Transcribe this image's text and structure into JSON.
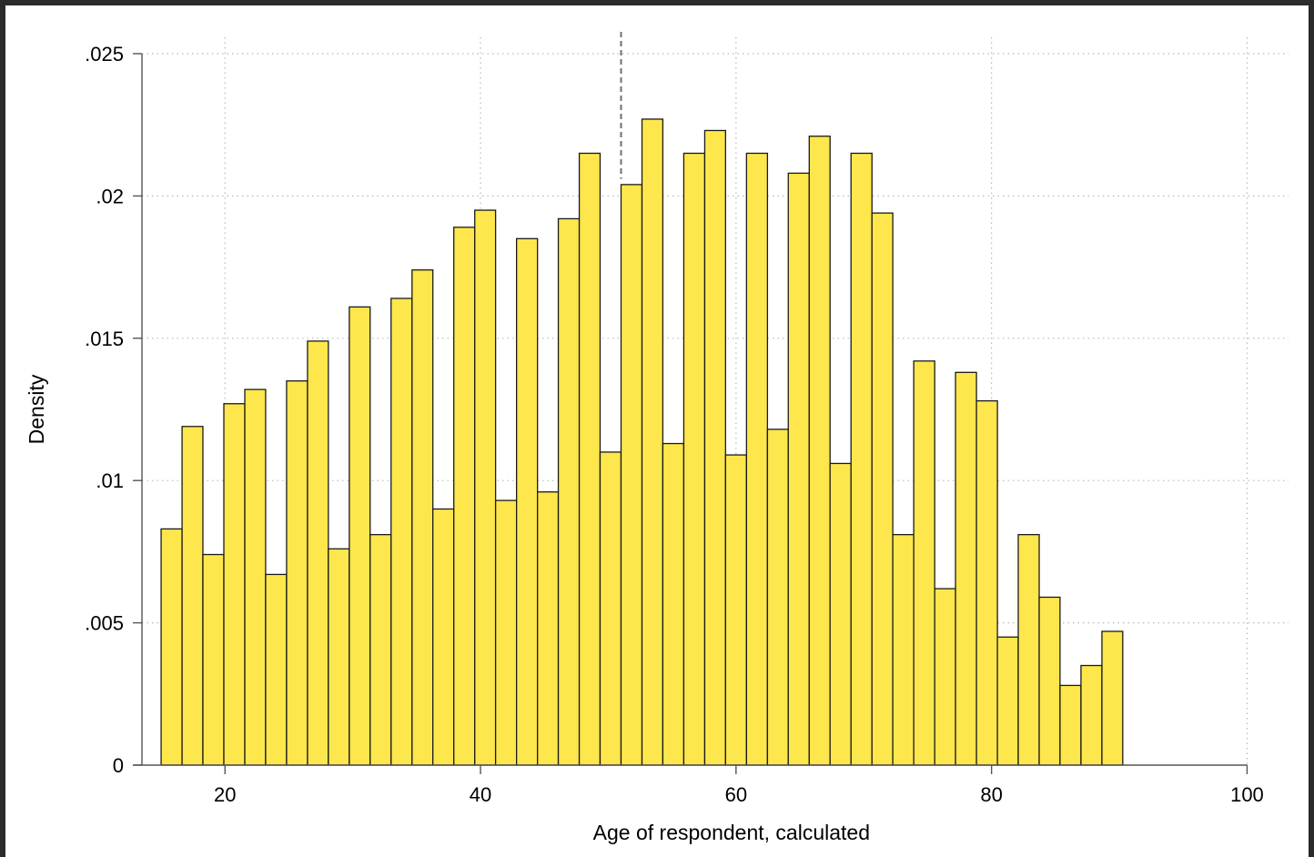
{
  "chart_data": {
    "type": "bar",
    "xlabel": "Age of respondent, calculated",
    "ylabel": "Density",
    "xlim": [
      13.5,
      101
    ],
    "ylim": [
      0,
      0.025
    ],
    "xticks": [
      20,
      40,
      60,
      80,
      100
    ],
    "xtick_labels": [
      "20",
      "40",
      "60",
      "80",
      "100"
    ],
    "yticks": [
      0,
      0.005,
      0.01,
      0.015,
      0.02,
      0.025
    ],
    "ytick_labels": [
      "0",
      ".005",
      ".01",
      ".015",
      ".02",
      ".025"
    ],
    "grid": true,
    "reference_line_x": 51,
    "bar_color": "#fde74c",
    "bar_edge_color": "#1a1a1a",
    "bin_edges": [
      15.0,
      16.64,
      18.27,
      19.91,
      21.55,
      23.18,
      24.82,
      26.46,
      28.09,
      29.73,
      31.36,
      33.0,
      34.64,
      36.27,
      37.91,
      39.55,
      41.18,
      42.82,
      44.46,
      46.09,
      47.73,
      49.36,
      51.0,
      52.64,
      54.27,
      55.91,
      57.55,
      59.18,
      60.82,
      62.46,
      64.09,
      65.73,
      67.36,
      69.0,
      70.64,
      72.27,
      73.91,
      75.55,
      77.18,
      78.82,
      80.46,
      82.09,
      83.73,
      85.36,
      87.0,
      88.64,
      90.27
    ],
    "values": [
      0.0083,
      0.0119,
      0.0074,
      0.0127,
      0.0132,
      0.0067,
      0.0135,
      0.0149,
      0.0076,
      0.0161,
      0.0081,
      0.0164,
      0.0174,
      0.009,
      0.0189,
      0.0195,
      0.0093,
      0.0185,
      0.0096,
      0.0192,
      0.0215,
      0.011,
      0.0204,
      0.0227,
      0.0113,
      0.0215,
      0.0223,
      0.0109,
      0.0215,
      0.0118,
      0.0208,
      0.0221,
      0.0106,
      0.0215,
      0.0194,
      0.0081,
      0.0142,
      0.0062,
      0.0138,
      0.0128,
      0.0045,
      0.0081,
      0.0059,
      0.0028,
      0.0035,
      0.0047
    ]
  }
}
